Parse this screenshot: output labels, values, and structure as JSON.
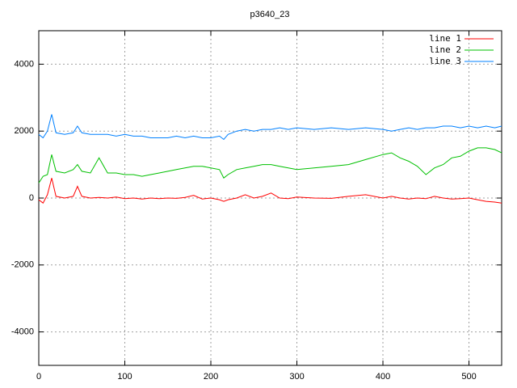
{
  "chart_data": {
    "type": "line",
    "title": "p3640_23",
    "x": [
      0,
      5,
      10,
      15,
      20,
      30,
      40,
      45,
      50,
      60,
      70,
      80,
      90,
      100,
      110,
      120,
      130,
      140,
      150,
      160,
      170,
      180,
      190,
      200,
      210,
      215,
      220,
      230,
      240,
      250,
      260,
      270,
      280,
      290,
      300,
      320,
      340,
      360,
      380,
      400,
      410,
      420,
      430,
      440,
      450,
      460,
      470,
      480,
      490,
      500,
      510,
      520,
      530,
      538
    ],
    "series": [
      {
        "name": "line 1",
        "color": "#ff0000",
        "values": [
          -50,
          -150,
          100,
          600,
          50,
          0,
          50,
          350,
          50,
          0,
          20,
          0,
          30,
          -20,
          0,
          -30,
          0,
          -20,
          0,
          -10,
          20,
          80,
          -30,
          0,
          -50,
          -100,
          -50,
          0,
          100,
          0,
          50,
          150,
          0,
          -20,
          30,
          0,
          -10,
          50,
          100,
          0,
          50,
          0,
          -30,
          0,
          -20,
          50,
          0,
          -30,
          -20,
          0,
          -50,
          -100,
          -120,
          -150
        ]
      },
      {
        "name": "line 2",
        "color": "#00c000",
        "values": [
          450,
          650,
          700,
          1300,
          800,
          750,
          850,
          1000,
          800,
          750,
          1200,
          750,
          750,
          700,
          700,
          650,
          700,
          750,
          800,
          850,
          900,
          950,
          950,
          900,
          850,
          600,
          700,
          850,
          900,
          950,
          1000,
          1000,
          950,
          900,
          850,
          900,
          950,
          1000,
          1150,
          1300,
          1350,
          1200,
          1100,
          950,
          700,
          900,
          1000,
          1200,
          1250,
          1400,
          1500,
          1500,
          1450,
          1350
        ]
      },
      {
        "name": "line 3",
        "color": "#0080ff",
        "values": [
          1900,
          1800,
          2000,
          2500,
          1950,
          1900,
          1950,
          2150,
          1950,
          1900,
          1900,
          1900,
          1850,
          1900,
          1850,
          1850,
          1800,
          1800,
          1800,
          1850,
          1800,
          1850,
          1800,
          1800,
          1850,
          1750,
          1900,
          2000,
          2050,
          2000,
          2050,
          2050,
          2100,
          2050,
          2100,
          2050,
          2100,
          2050,
          2100,
          2050,
          2000,
          2050,
          2100,
          2050,
          2100,
          2100,
          2150,
          2150,
          2100,
          2150,
          2100,
          2150,
          2100,
          2150
        ]
      }
    ],
    "xlim": [
      0,
      538
    ],
    "ylim": [
      -5000,
      5000
    ],
    "xticks": [
      0,
      100,
      200,
      300,
      400,
      500
    ],
    "yticks": [
      -4000,
      -2000,
      0,
      2000,
      4000
    ],
    "grid": true,
    "legend": "top-right"
  }
}
